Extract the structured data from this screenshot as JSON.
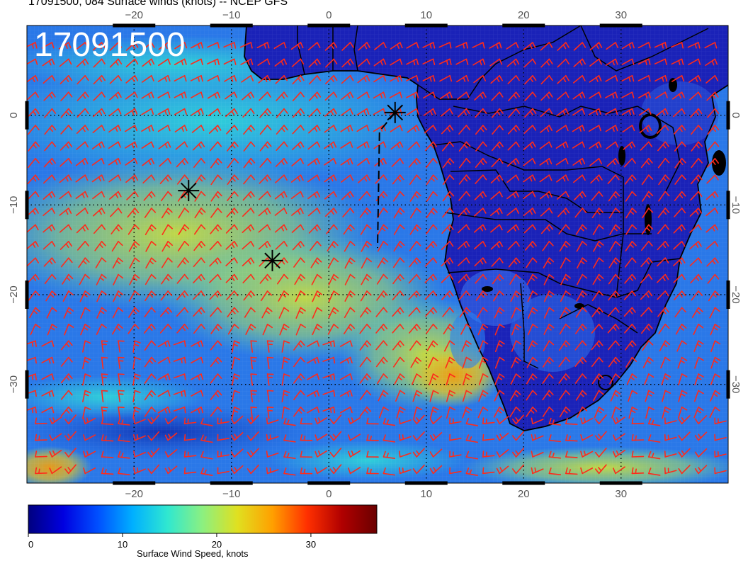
{
  "title": "17091500, 084 Surface winds (knots) -- NCEP GFS",
  "date_stamp": "17091500",
  "map": {
    "lon_range": [
      -31,
      41
    ],
    "lat_range": [
      -41,
      10
    ],
    "lon_ticks": [
      -20,
      -10,
      0,
      10,
      20,
      30
    ],
    "lat_ticks": [
      0,
      -10,
      -20,
      -30
    ],
    "lon_tick_labels": [
      "−20",
      "−10",
      "0",
      "10",
      "20",
      "30"
    ],
    "lat_tick_labels": [
      "0",
      "−10",
      "−20",
      "−30"
    ],
    "grid": "dotted",
    "barb_color": "#ff2a1a",
    "markers": [
      {
        "lon": 6.8,
        "lat": 0.3
      },
      {
        "lon": -14.4,
        "lat": -8.4
      },
      {
        "lon": -5.8,
        "lat": -16.2
      }
    ],
    "dashed_track": [
      [
        6.8,
        0.3
      ],
      [
        5.2,
        -1.8
      ],
      [
        5.0,
        -14.8
      ]
    ]
  },
  "colorbar": {
    "title": "Surface Wind Speed, knots",
    "range": [
      0,
      37
    ],
    "tick_values": [
      0,
      10,
      20,
      30
    ],
    "tick_labels": [
      "0",
      "10",
      "20",
      "30"
    ],
    "colors": [
      "#00007f",
      "#0000e0",
      "#0050ff",
      "#00b0ff",
      "#30e8d0",
      "#8cf080",
      "#e0e020",
      "#ffa000",
      "#ff3000",
      "#b00000",
      "#6a0000"
    ]
  }
}
